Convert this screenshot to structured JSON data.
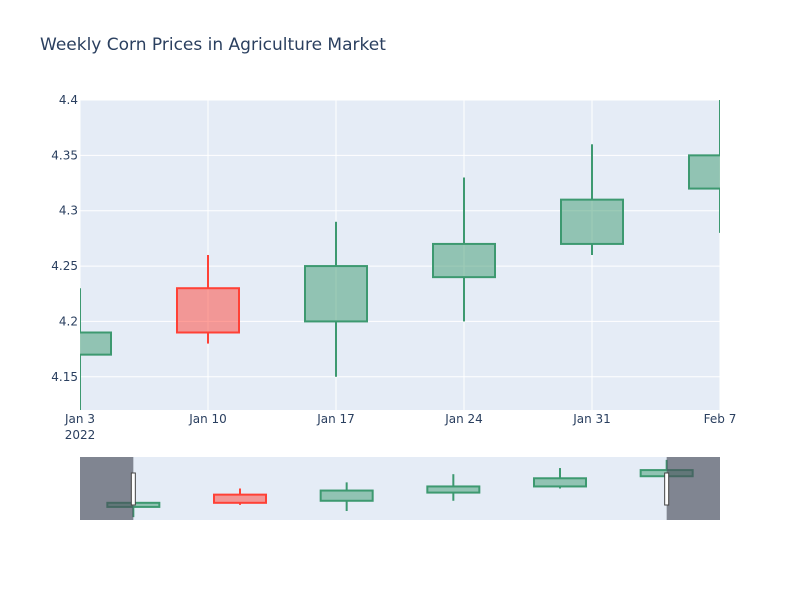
{
  "chart_data": {
    "type": "candlestick",
    "title": "Weekly Corn Prices in Agriculture Market",
    "xlabel": "",
    "ylabel": "",
    "x_tick_labels": [
      "Jan 3",
      "Jan 10",
      "Jan 17",
      "Jan 24",
      "Jan 31",
      "Feb 7"
    ],
    "x_year_label": "2022",
    "y_tick_labels": [
      "4.15",
      "4.2",
      "4.25",
      "4.3",
      "4.35",
      "4.4"
    ],
    "ylim": [
      4.12,
      4.4
    ],
    "grid": true,
    "rangeslider": true,
    "increasing_color": "#3d9970",
    "decreasing_color": "#ff4136",
    "candles": [
      {
        "date": "2022-01-03",
        "open": 4.17,
        "high": 4.23,
        "low": 4.12,
        "close": 4.19
      },
      {
        "date": "2022-01-10",
        "open": 4.23,
        "high": 4.26,
        "low": 4.18,
        "close": 4.19
      },
      {
        "date": "2022-01-17",
        "open": 4.2,
        "high": 4.29,
        "low": 4.15,
        "close": 4.25
      },
      {
        "date": "2022-01-24",
        "open": 4.24,
        "high": 4.33,
        "low": 4.2,
        "close": 4.27
      },
      {
        "date": "2022-01-31",
        "open": 4.27,
        "high": 4.36,
        "low": 4.26,
        "close": 4.31
      },
      {
        "date": "2022-02-07",
        "open": 4.32,
        "high": 4.4,
        "low": 4.28,
        "close": 4.35
      }
    ]
  }
}
